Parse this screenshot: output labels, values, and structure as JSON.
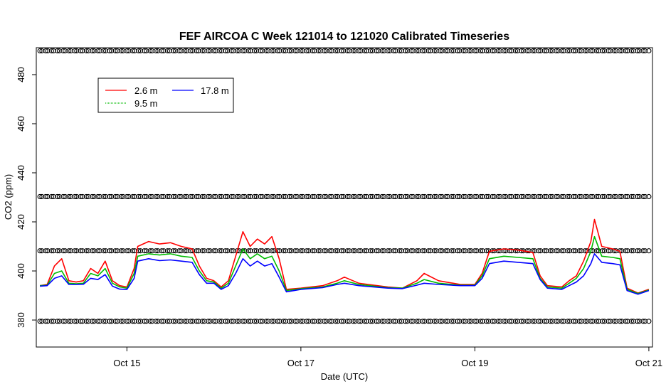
{
  "chart_data": {
    "type": "line",
    "title": "FEF AIRCOA C  Week 121014 to 121020  Calibrated Timeseries",
    "xlabel": "Date (UTC)",
    "ylabel": "CO2 (ppm)",
    "xlim": [
      "2012-10-13T23:00",
      "2012-10-21T01:00"
    ],
    "ylim": [
      369,
      491
    ],
    "x_ticks": [
      {
        "x": "2012-10-15",
        "label": "Oct 15"
      },
      {
        "x": "2012-10-17",
        "label": "Oct 17"
      },
      {
        "x": "2012-10-19",
        "label": "Oct 19"
      },
      {
        "x": "2012-10-21",
        "label": "Oct 21"
      }
    ],
    "y_ticks": [
      {
        "y": 380,
        "label": "380"
      },
      {
        "y": 400,
        "label": "400"
      },
      {
        "y": 420,
        "label": "420"
      },
      {
        "y": 440,
        "label": "440"
      },
      {
        "y": 460,
        "label": "460"
      },
      {
        "y": 480,
        "label": "480"
      }
    ],
    "legend": {
      "placement": "top-left",
      "entries": [
        {
          "label": "2.6 m",
          "color": "#ff0000"
        },
        {
          "label": "9.5 m",
          "color": "#00bb00"
        },
        {
          "label": "17.8 m",
          "color": "#0000ff"
        }
      ]
    },
    "calibration_levels": [
      {
        "y": 379.5
      },
      {
        "y": 408.2
      },
      {
        "y": 430.3
      },
      {
        "y": 489.7
      }
    ],
    "calibration_times": [
      "2012-10-14T00:00",
      "2012-10-21T00:00"
    ],
    "series": [
      {
        "name": "2.6 m",
        "color": "#ff0000",
        "points": [
          [
            "2012-10-14T00:00",
            394
          ],
          [
            "2012-10-14T02:00",
            394.5
          ],
          [
            "2012-10-14T04:00",
            402
          ],
          [
            "2012-10-14T06:00",
            405
          ],
          [
            "2012-10-14T08:00",
            396
          ],
          [
            "2012-10-14T10:00",
            395.5
          ],
          [
            "2012-10-14T12:00",
            396
          ],
          [
            "2012-10-14T14:00",
            401
          ],
          [
            "2012-10-14T16:00",
            399
          ],
          [
            "2012-10-14T18:00",
            404
          ],
          [
            "2012-10-14T20:00",
            396
          ],
          [
            "2012-10-14T22:00",
            394
          ],
          [
            "2012-10-15T00:00",
            393.5
          ],
          [
            "2012-10-15T02:00",
            401
          ],
          [
            "2012-10-15T03:00",
            410
          ],
          [
            "2012-10-15T06:00",
            412
          ],
          [
            "2012-10-15T09:00",
            411
          ],
          [
            "2012-10-15T12:00",
            411.5
          ],
          [
            "2012-10-15T15:00",
            410
          ],
          [
            "2012-10-15T18:00",
            409
          ],
          [
            "2012-10-15T20:00",
            402
          ],
          [
            "2012-10-15T22:00",
            397
          ],
          [
            "2012-10-16T00:00",
            396
          ],
          [
            "2012-10-16T02:00",
            393.5
          ],
          [
            "2012-10-16T04:00",
            396
          ],
          [
            "2012-10-16T06:00",
            406
          ],
          [
            "2012-10-16T08:00",
            416
          ],
          [
            "2012-10-16T10:00",
            410
          ],
          [
            "2012-10-16T12:00",
            413
          ],
          [
            "2012-10-16T14:00",
            411
          ],
          [
            "2012-10-16T16:00",
            414
          ],
          [
            "2012-10-16T18:00",
            405
          ],
          [
            "2012-10-16T20:00",
            392.5
          ],
          [
            "2012-10-17T00:00",
            393
          ],
          [
            "2012-10-17T06:00",
            394
          ],
          [
            "2012-10-17T10:00",
            396
          ],
          [
            "2012-10-17T12:00",
            397.5
          ],
          [
            "2012-10-17T16:00",
            395
          ],
          [
            "2012-10-18T00:00",
            393.5
          ],
          [
            "2012-10-18T04:00",
            393
          ],
          [
            "2012-10-18T08:00",
            396
          ],
          [
            "2012-10-18T10:00",
            399
          ],
          [
            "2012-10-18T14:00",
            396
          ],
          [
            "2012-10-18T20:00",
            394.5
          ],
          [
            "2012-10-19T00:00",
            394.5
          ],
          [
            "2012-10-19T02:00",
            399
          ],
          [
            "2012-10-19T04:00",
            408
          ],
          [
            "2012-10-19T08:00",
            409
          ],
          [
            "2012-10-19T12:00",
            408.5
          ],
          [
            "2012-10-19T16:00",
            407.5
          ],
          [
            "2012-10-19T18:00",
            398
          ],
          [
            "2012-10-19T20:00",
            394
          ],
          [
            "2012-10-20T00:00",
            393.5
          ],
          [
            "2012-10-20T02:00",
            396
          ],
          [
            "2012-10-20T04:00",
            398
          ],
          [
            "2012-10-20T06:00",
            404
          ],
          [
            "2012-10-20T08:00",
            412
          ],
          [
            "2012-10-20T09:00",
            421
          ],
          [
            "2012-10-20T11:00",
            410
          ],
          [
            "2012-10-20T14:00",
            409
          ],
          [
            "2012-10-20T16:00",
            408
          ],
          [
            "2012-10-20T18:00",
            393
          ],
          [
            "2012-10-20T21:00",
            391
          ],
          [
            "2012-10-21T00:00",
            392.5
          ]
        ]
      },
      {
        "name": "9.5 m",
        "color": "#00bb00",
        "points": [
          [
            "2012-10-14T00:00",
            394
          ],
          [
            "2012-10-14T02:00",
            394.2
          ],
          [
            "2012-10-14T04:00",
            399
          ],
          [
            "2012-10-14T06:00",
            400
          ],
          [
            "2012-10-14T08:00",
            395
          ],
          [
            "2012-10-14T10:00",
            394.8
          ],
          [
            "2012-10-14T12:00",
            395
          ],
          [
            "2012-10-14T14:00",
            399
          ],
          [
            "2012-10-14T16:00",
            398
          ],
          [
            "2012-10-14T18:00",
            401
          ],
          [
            "2012-10-14T20:00",
            395
          ],
          [
            "2012-10-14T22:00",
            393.5
          ],
          [
            "2012-10-15T00:00",
            393
          ],
          [
            "2012-10-15T02:00",
            399
          ],
          [
            "2012-10-15T03:00",
            406
          ],
          [
            "2012-10-15T06:00",
            407
          ],
          [
            "2012-10-15T09:00",
            406.5
          ],
          [
            "2012-10-15T12:00",
            407
          ],
          [
            "2012-10-15T15:00",
            406
          ],
          [
            "2012-10-15T18:00",
            405.5
          ],
          [
            "2012-10-15T20:00",
            400
          ],
          [
            "2012-10-15T22:00",
            396
          ],
          [
            "2012-10-16T00:00",
            395.5
          ],
          [
            "2012-10-16T02:00",
            393
          ],
          [
            "2012-10-16T04:00",
            395
          ],
          [
            "2012-10-16T06:00",
            402
          ],
          [
            "2012-10-16T08:00",
            409
          ],
          [
            "2012-10-16T10:00",
            405
          ],
          [
            "2012-10-16T12:00",
            407
          ],
          [
            "2012-10-16T14:00",
            405
          ],
          [
            "2012-10-16T16:00",
            406
          ],
          [
            "2012-10-16T18:00",
            400
          ],
          [
            "2012-10-16T20:00",
            392
          ],
          [
            "2012-10-17T00:00",
            392.8
          ],
          [
            "2012-10-17T06:00",
            393.5
          ],
          [
            "2012-10-17T10:00",
            395
          ],
          [
            "2012-10-17T12:00",
            396
          ],
          [
            "2012-10-17T16:00",
            394.5
          ],
          [
            "2012-10-18T00:00",
            393.2
          ],
          [
            "2012-10-18T04:00",
            393
          ],
          [
            "2012-10-18T08:00",
            395
          ],
          [
            "2012-10-18T10:00",
            396.5
          ],
          [
            "2012-10-18T14:00",
            395
          ],
          [
            "2012-10-18T20:00",
            394.2
          ],
          [
            "2012-10-19T00:00",
            394.2
          ],
          [
            "2012-10-19T02:00",
            398
          ],
          [
            "2012-10-19T04:00",
            405
          ],
          [
            "2012-10-19T08:00",
            406
          ],
          [
            "2012-10-19T12:00",
            405.5
          ],
          [
            "2012-10-19T16:00",
            405
          ],
          [
            "2012-10-19T18:00",
            397
          ],
          [
            "2012-10-19T20:00",
            393.5
          ],
          [
            "2012-10-20T00:00",
            393
          ],
          [
            "2012-10-20T02:00",
            395
          ],
          [
            "2012-10-20T04:00",
            397
          ],
          [
            "2012-10-20T06:00",
            401
          ],
          [
            "2012-10-20T08:00",
            408
          ],
          [
            "2012-10-20T09:00",
            414
          ],
          [
            "2012-10-20T11:00",
            406
          ],
          [
            "2012-10-20T14:00",
            405.5
          ],
          [
            "2012-10-20T16:00",
            405
          ],
          [
            "2012-10-20T18:00",
            392.5
          ],
          [
            "2012-10-20T21:00",
            390.8
          ],
          [
            "2012-10-21T00:00",
            392.2
          ]
        ]
      },
      {
        "name": "17.8 m",
        "color": "#0000ff",
        "points": [
          [
            "2012-10-14T00:00",
            393.8
          ],
          [
            "2012-10-14T02:00",
            394
          ],
          [
            "2012-10-14T04:00",
            397
          ],
          [
            "2012-10-14T06:00",
            398
          ],
          [
            "2012-10-14T08:00",
            394.5
          ],
          [
            "2012-10-14T10:00",
            394.5
          ],
          [
            "2012-10-14T12:00",
            394.6
          ],
          [
            "2012-10-14T14:00",
            397
          ],
          [
            "2012-10-14T16:00",
            396.5
          ],
          [
            "2012-10-14T18:00",
            398.5
          ],
          [
            "2012-10-14T20:00",
            393.8
          ],
          [
            "2012-10-14T22:00",
            392.6
          ],
          [
            "2012-10-15T00:00",
            392.5
          ],
          [
            "2012-10-15T02:00",
            397
          ],
          [
            "2012-10-15T03:00",
            404
          ],
          [
            "2012-10-15T06:00",
            405
          ],
          [
            "2012-10-15T09:00",
            404.2
          ],
          [
            "2012-10-15T12:00",
            404.5
          ],
          [
            "2012-10-15T15:00",
            404
          ],
          [
            "2012-10-15T18:00",
            403.5
          ],
          [
            "2012-10-15T20:00",
            398.5
          ],
          [
            "2012-10-15T22:00",
            395
          ],
          [
            "2012-10-16T00:00",
            395
          ],
          [
            "2012-10-16T02:00",
            392.5
          ],
          [
            "2012-10-16T04:00",
            394
          ],
          [
            "2012-10-16T06:00",
            399
          ],
          [
            "2012-10-16T08:00",
            405
          ],
          [
            "2012-10-16T10:00",
            402
          ],
          [
            "2012-10-16T12:00",
            404
          ],
          [
            "2012-10-16T14:00",
            402
          ],
          [
            "2012-10-16T16:00",
            403
          ],
          [
            "2012-10-16T18:00",
            397.5
          ],
          [
            "2012-10-16T20:00",
            391.5
          ],
          [
            "2012-10-17T00:00",
            392.5
          ],
          [
            "2012-10-17T06:00",
            393.2
          ],
          [
            "2012-10-17T10:00",
            394.5
          ],
          [
            "2012-10-17T12:00",
            395
          ],
          [
            "2012-10-17T16:00",
            394
          ],
          [
            "2012-10-18T00:00",
            393
          ],
          [
            "2012-10-18T04:00",
            392.8
          ],
          [
            "2012-10-18T08:00",
            394.2
          ],
          [
            "2012-10-18T10:00",
            395
          ],
          [
            "2012-10-18T14:00",
            394.5
          ],
          [
            "2012-10-18T20:00",
            394
          ],
          [
            "2012-10-19T00:00",
            394
          ],
          [
            "2012-10-19T02:00",
            397
          ],
          [
            "2012-10-19T04:00",
            403
          ],
          [
            "2012-10-19T08:00",
            404
          ],
          [
            "2012-10-19T12:00",
            403.5
          ],
          [
            "2012-10-19T16:00",
            403
          ],
          [
            "2012-10-19T18:00",
            396.5
          ],
          [
            "2012-10-19T20:00",
            393
          ],
          [
            "2012-10-20T00:00",
            392.5
          ],
          [
            "2012-10-20T02:00",
            394
          ],
          [
            "2012-10-20T04:00",
            395.5
          ],
          [
            "2012-10-20T06:00",
            398
          ],
          [
            "2012-10-20T08:00",
            403
          ],
          [
            "2012-10-20T09:00",
            407
          ],
          [
            "2012-10-20T11:00",
            403.5
          ],
          [
            "2012-10-20T14:00",
            403
          ],
          [
            "2012-10-20T16:00",
            402.5
          ],
          [
            "2012-10-20T18:00",
            392
          ],
          [
            "2012-10-20T21:00",
            390.5
          ],
          [
            "2012-10-21T00:00",
            392
          ]
        ]
      }
    ]
  }
}
